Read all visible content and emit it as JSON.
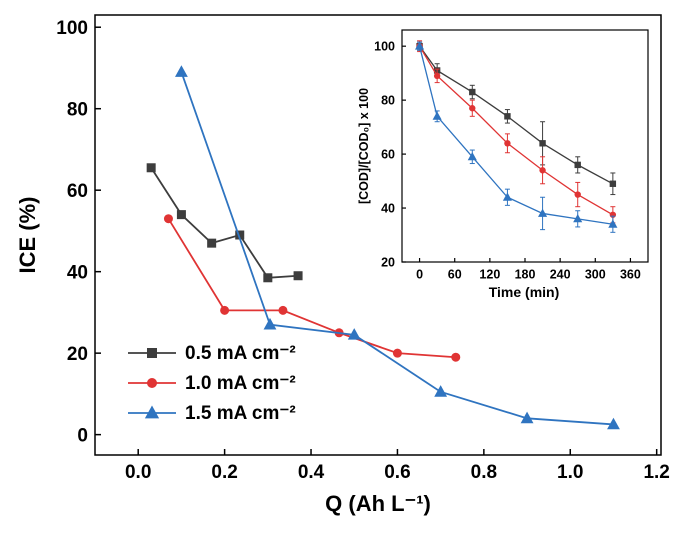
{
  "figure": {
    "background": "#ffffff"
  },
  "colors": {
    "series_05": "#3d3d3d",
    "series_10": "#e03434",
    "series_15": "#2f74c0",
    "axis": "#000000"
  },
  "chart_data": [
    {
      "id": "main",
      "type": "line",
      "title": "",
      "xlabel": "Q (Ah L⁻¹)",
      "ylabel": "ICE (%)",
      "xlim": [
        -0.1,
        1.21
      ],
      "ylim": [
        -5,
        103
      ],
      "x_ticks": [
        0.0,
        0.2,
        0.4,
        0.6,
        0.8,
        1.0,
        1.2
      ],
      "x_tick_labels": [
        "0.0",
        "0.2",
        "0.4",
        "0.6",
        "0.8",
        "1.0",
        "1.2"
      ],
      "y_ticks": [
        0,
        20,
        40,
        60,
        80,
        100
      ],
      "y_tick_labels": [
        "0",
        "20",
        "40",
        "60",
        "80",
        "100"
      ],
      "grid": false,
      "legend_position": "lower-left",
      "series": [
        {
          "name": "0.5 mA cm⁻²",
          "color": "#3d3d3d",
          "marker": "square",
          "x": [
            0.03,
            0.1,
            0.17,
            0.235,
            0.3,
            0.37
          ],
          "y": [
            65.5,
            54,
            47,
            49,
            38.5,
            39
          ]
        },
        {
          "name": "1.0 mA cm⁻²",
          "color": "#e03434",
          "marker": "circle",
          "x": [
            0.07,
            0.2,
            0.335,
            0.465,
            0.6,
            0.735
          ],
          "y": [
            53,
            30.5,
            30.5,
            25,
            20,
            19
          ]
        },
        {
          "name": "1.5 mA cm⁻²",
          "color": "#2f74c0",
          "marker": "triangle",
          "x": [
            0.1,
            0.305,
            0.5,
            0.7,
            0.9,
            1.1
          ],
          "y": [
            89,
            27,
            24.5,
            10.5,
            4,
            2.5
          ]
        }
      ]
    },
    {
      "id": "inset",
      "type": "line",
      "title": "",
      "xlabel": "Time (min)",
      "ylabel": "[COD]/[COD₀] x 100",
      "xlim": [
        -30,
        390
      ],
      "ylim": [
        20,
        106
      ],
      "x_ticks": [
        0,
        60,
        120,
        180,
        240,
        300,
        360
      ],
      "x_tick_labels": [
        "0",
        "60",
        "120",
        "180",
        "240",
        "300",
        "360"
      ],
      "y_ticks": [
        20,
        40,
        60,
        80,
        100
      ],
      "y_tick_labels": [
        "20",
        "40",
        "60",
        "80",
        "100"
      ],
      "grid": false,
      "series": [
        {
          "name": "0.5 mA cm⁻²",
          "color": "#3d3d3d",
          "marker": "square",
          "x": [
            0,
            30,
            90,
            150,
            210,
            270,
            330
          ],
          "y": [
            100,
            91,
            83,
            74,
            64,
            56,
            49
          ],
          "yerr": [
            1.5,
            2.5,
            2.5,
            2.5,
            8,
            3,
            4
          ]
        },
        {
          "name": "1.0 mA cm⁻²",
          "color": "#e03434",
          "marker": "circle",
          "x": [
            0,
            30,
            90,
            150,
            210,
            270,
            330
          ],
          "y": [
            100,
            89,
            77,
            64,
            54,
            45,
            37.5
          ],
          "yerr": [
            2,
            2.5,
            3,
            3.5,
            5,
            4.5,
            3
          ]
        },
        {
          "name": "1.5 mA cm⁻²",
          "color": "#2f74c0",
          "marker": "triangle",
          "x": [
            0,
            30,
            90,
            150,
            210,
            270,
            330
          ],
          "y": [
            100,
            74,
            59,
            44,
            38,
            36,
            34
          ],
          "yerr": [
            1.5,
            2,
            2.5,
            3,
            6,
            3,
            3
          ]
        }
      ]
    }
  ]
}
